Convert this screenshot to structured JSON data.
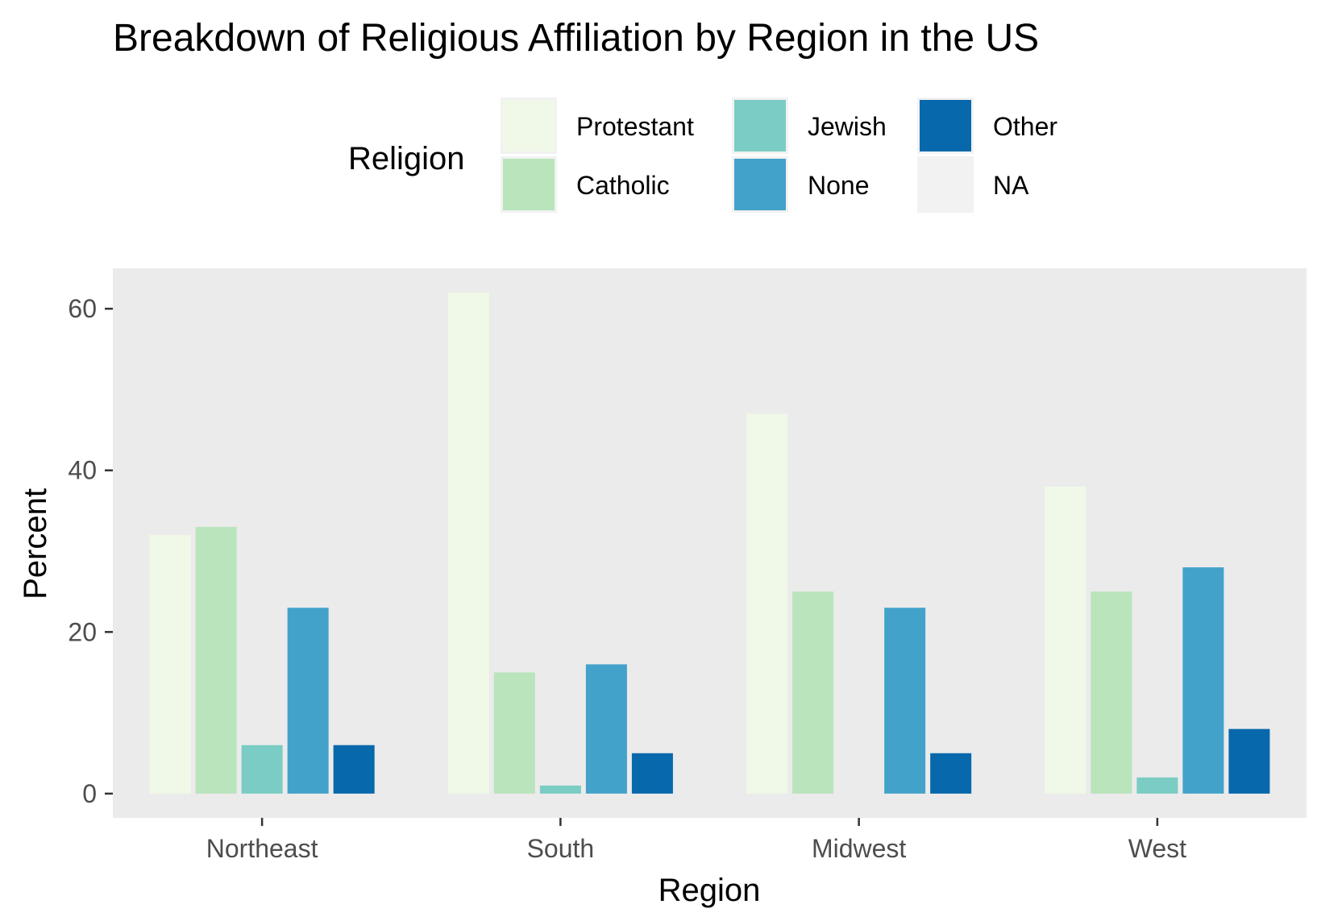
{
  "chart_data": {
    "type": "bar",
    "title": "Breakdown of Religious Affiliation by Region in the US",
    "xlabel": "Region",
    "ylabel": "Percent",
    "ylim": [
      -3,
      65
    ],
    "yticks": [
      0,
      20,
      40,
      60
    ],
    "categories": [
      "Northeast",
      "South",
      "Midwest",
      "West"
    ],
    "legend": {
      "title": "Religion",
      "position": "top",
      "entries": [
        "Protestant",
        "Catholic",
        "Jewish",
        "None",
        "Other",
        "NA"
      ]
    },
    "series": [
      {
        "name": "Protestant",
        "color": "#F0F9E8",
        "values": [
          32,
          62,
          47,
          38
        ]
      },
      {
        "name": "Catholic",
        "color": "#BAE4BC",
        "values": [
          33,
          15,
          25,
          25
        ]
      },
      {
        "name": "Jewish",
        "color": "#7BCCC4",
        "values": [
          6,
          1,
          null,
          2
        ]
      },
      {
        "name": "None",
        "color": "#43A2CA",
        "values": [
          23,
          16,
          23,
          28
        ]
      },
      {
        "name": "Other",
        "color": "#0868AC",
        "values": [
          6,
          5,
          5,
          8
        ]
      }
    ],
    "na_color": "#F2F2F2",
    "panel_background": "#EBEBEB",
    "grid": false
  }
}
